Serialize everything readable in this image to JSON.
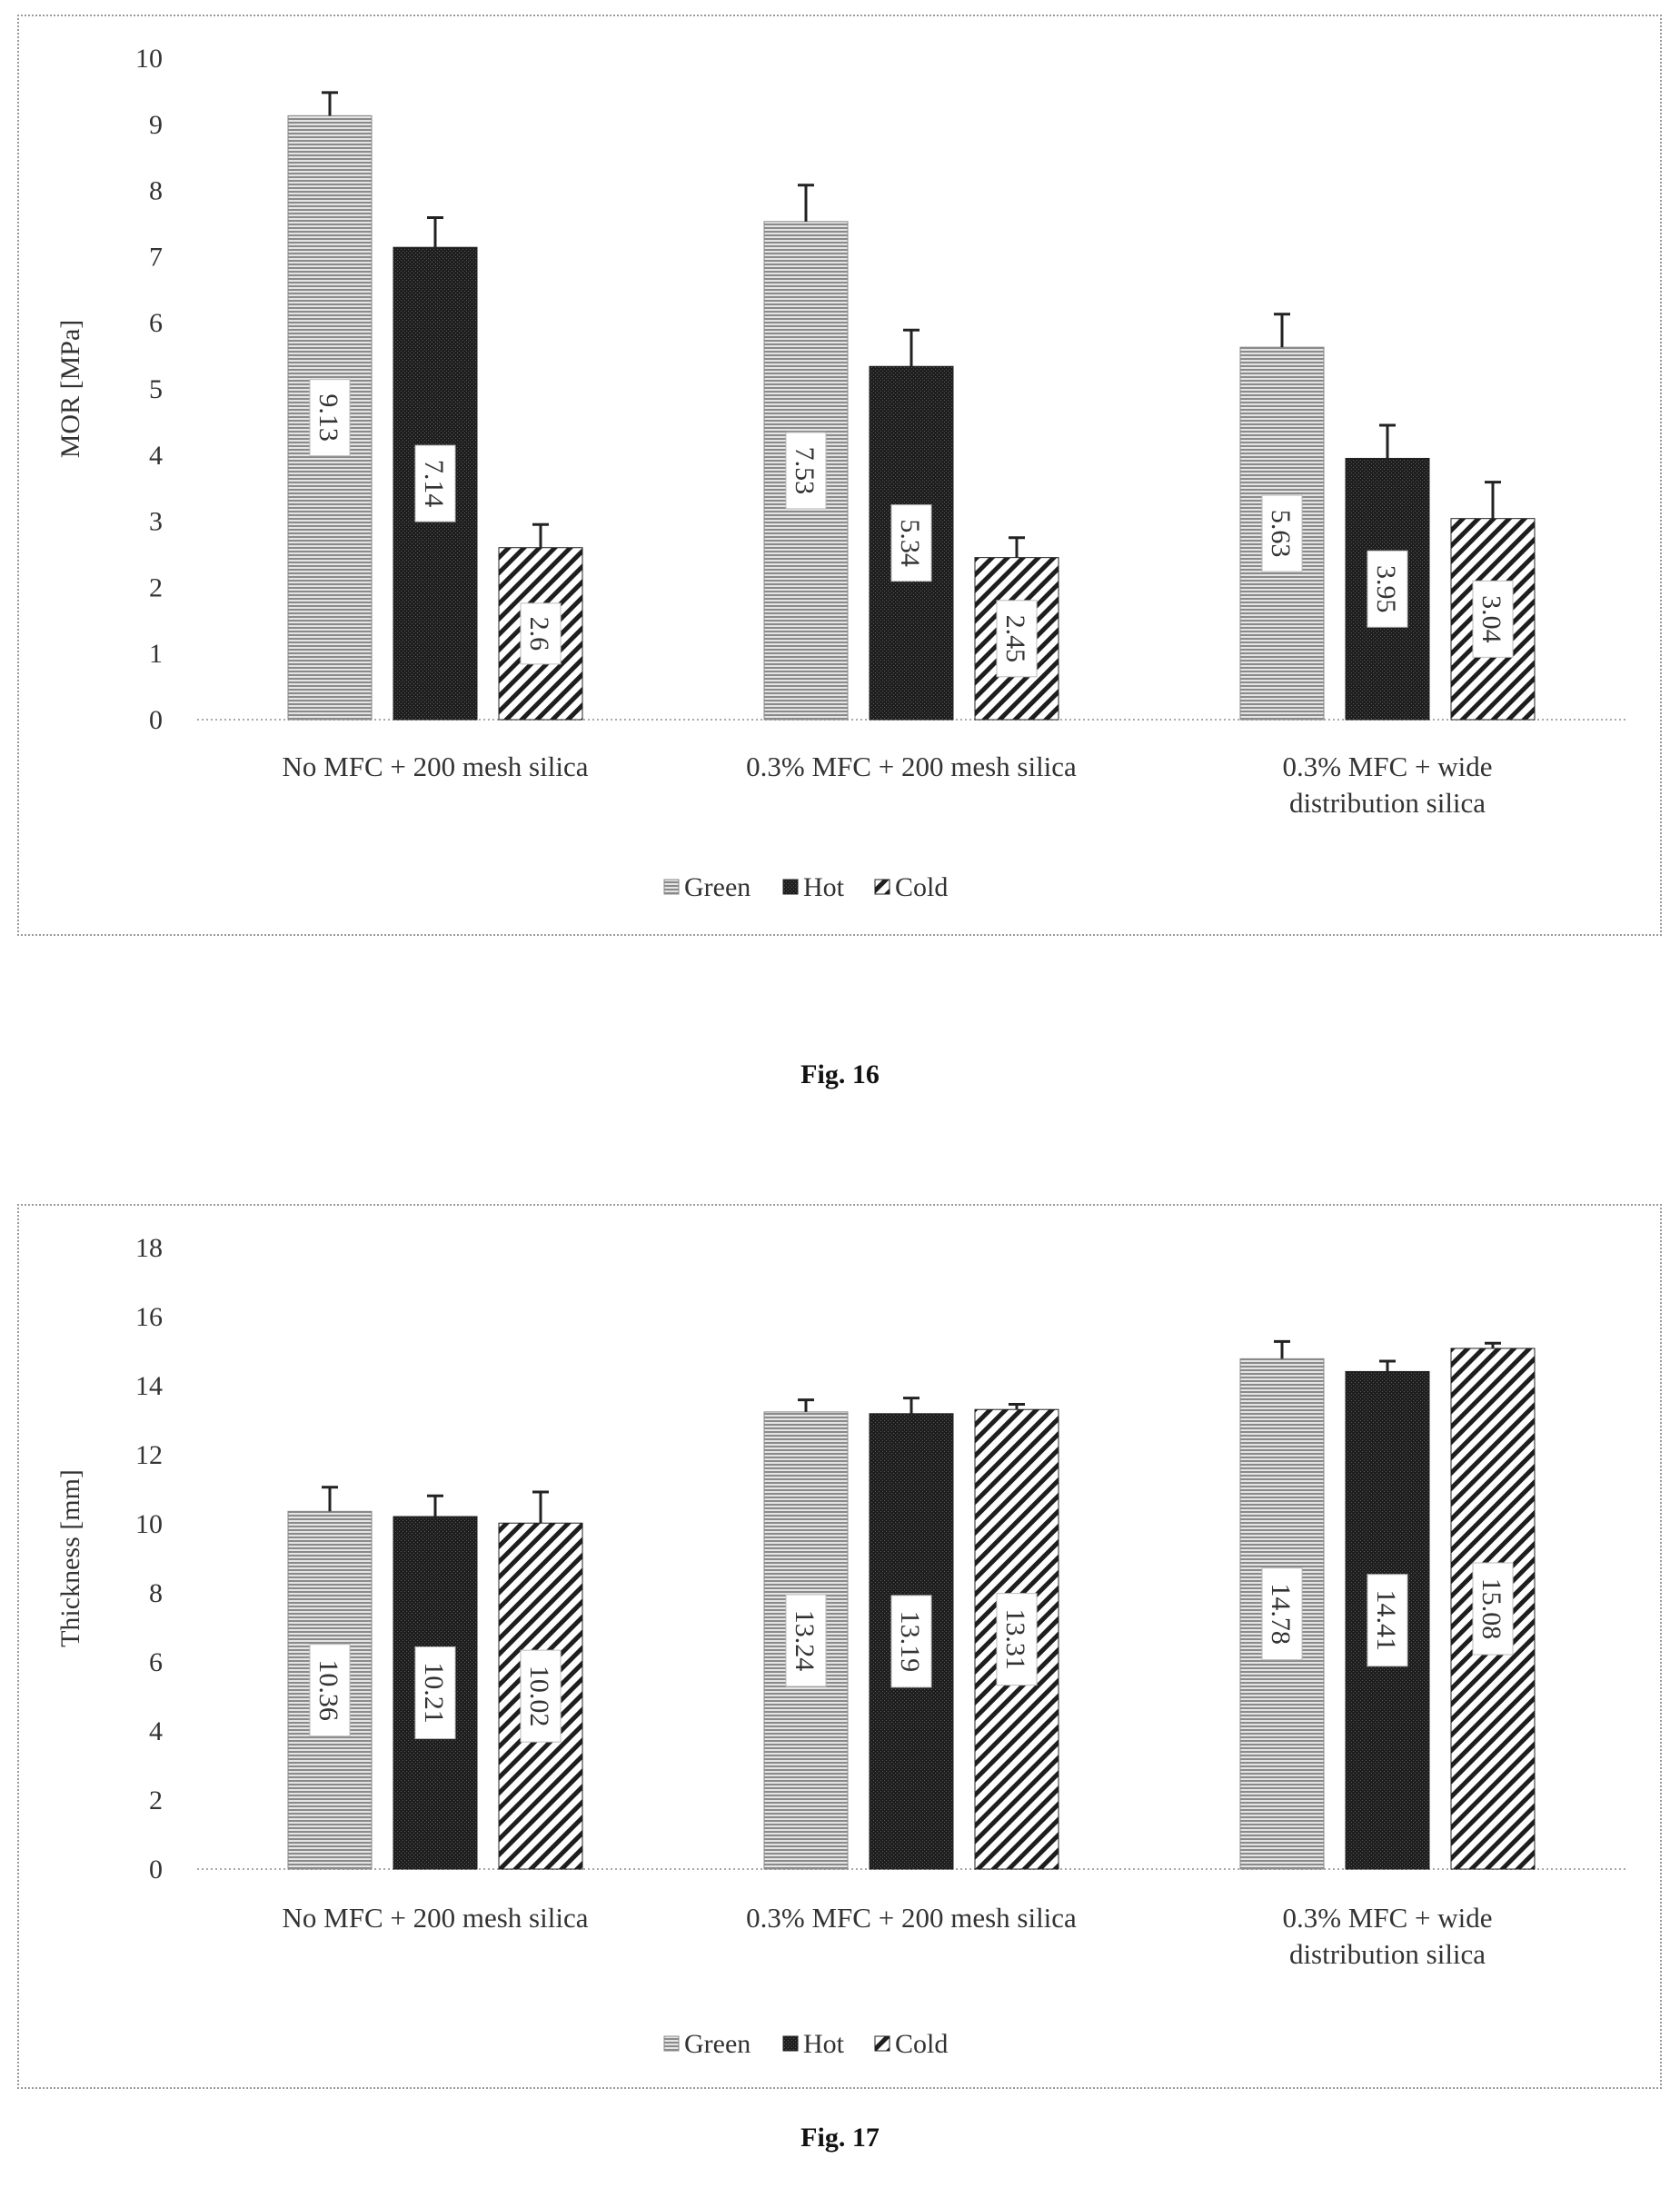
{
  "figures": [
    {
      "caption": "Fig. 16",
      "chart_data": {
        "type": "bar",
        "title": "",
        "ylabel": "MOR [MPa]",
        "xlabel": "",
        "ylim": [
          0,
          10
        ],
        "yticks": [
          0,
          1,
          2,
          3,
          4,
          5,
          6,
          7,
          8,
          9,
          10
        ],
        "grid": false,
        "legend_position": "bottom",
        "categories": [
          [
            "No MFC + 200 mesh silica"
          ],
          [
            "0.3% MFC + 200 mesh silica"
          ],
          [
            "0.3% MFC + wide",
            "distribution silica"
          ]
        ],
        "series": [
          {
            "name": "Green",
            "pattern": "horizontal-lines",
            "color": "#8a8a8a",
            "values": [
              9.13,
              7.53,
              5.63
            ],
            "labels": [
              "9.13",
              "7.53",
              "5.63"
            ],
            "errors": [
              0.35,
              0.55,
              0.5
            ]
          },
          {
            "name": "Hot",
            "pattern": "dense-dots",
            "color": "#222222",
            "values": [
              7.14,
              5.34,
              3.95
            ],
            "labels": [
              "7.14",
              "5.34",
              "3.95"
            ],
            "errors": [
              0.45,
              0.55,
              0.5
            ]
          },
          {
            "name": "Cold",
            "pattern": "diagonal-lines",
            "color": "#222222",
            "values": [
              2.6,
              2.45,
              3.04
            ],
            "labels": [
              "2.6",
              "2.45",
              "3.04"
            ],
            "errors": [
              0.35,
              0.3,
              0.55
            ]
          }
        ]
      }
    },
    {
      "caption": "Fig. 17",
      "chart_data": {
        "type": "bar",
        "title": "",
        "ylabel": "Thickness [mm]",
        "xlabel": "",
        "ylim": [
          0,
          18
        ],
        "yticks": [
          0,
          2,
          4,
          6,
          8,
          10,
          12,
          14,
          16,
          18
        ],
        "grid": false,
        "legend_position": "bottom",
        "categories": [
          [
            "No MFC + 200 mesh silica"
          ],
          [
            "0.3% MFC + 200 mesh silica"
          ],
          [
            "0.3% MFC + wide",
            "distribution silica"
          ]
        ],
        "series": [
          {
            "name": "Green",
            "pattern": "horizontal-lines",
            "color": "#8a8a8a",
            "values": [
              10.36,
              13.24,
              14.78
            ],
            "labels": [
              "10.36",
              "13.24",
              "14.78"
            ],
            "errors": [
              0.7,
              0.35,
              0.5
            ]
          },
          {
            "name": "Hot",
            "pattern": "dense-dots",
            "color": "#222222",
            "values": [
              10.21,
              13.19,
              14.41
            ],
            "labels": [
              "10.21",
              "13.19",
              "14.41"
            ],
            "errors": [
              0.6,
              0.45,
              0.3
            ]
          },
          {
            "name": "Cold",
            "pattern": "diagonal-lines",
            "color": "#222222",
            "values": [
              10.02,
              13.31,
              15.08
            ],
            "labels": [
              "10.02",
              "13.31",
              "15.08"
            ],
            "errors": [
              0.9,
              0.15,
              0.15
            ]
          }
        ]
      }
    }
  ]
}
